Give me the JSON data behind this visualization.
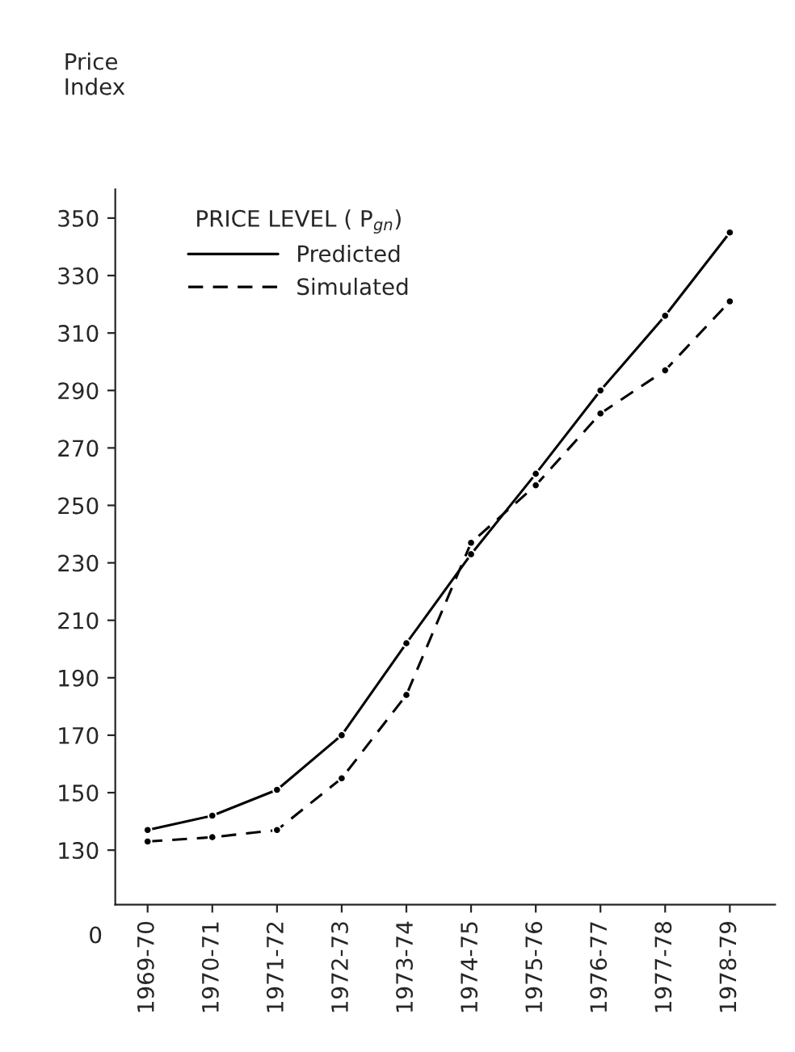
{
  "chart_data": {
    "type": "line",
    "ylabel": "Price\nIndex",
    "legend_title": "PRICE LEVEL ( P$_{gn}$)",
    "legend": "top left",
    "marker": "circle",
    "grid": false,
    "categories": [
      "1969-70",
      "1970-71",
      "1971-72",
      "1972-73",
      "1973-74",
      "1974-75",
      "1975-76",
      "1976-77",
      "1977-78",
      "1978-79"
    ],
    "ylim": [
      111,
      360
    ],
    "annotations": [
      "0"
    ],
    "yticks": [
      130,
      150,
      170,
      190,
      210,
      230,
      250,
      270,
      290,
      310,
      330,
      350
    ],
    "series": [
      {
        "name": "Predicted",
        "color": "#000000",
        "line_style": "solid",
        "values": [
          137,
          142,
          151,
          170,
          202,
          233,
          261,
          290,
          316,
          345
        ]
      },
      {
        "name": "Simulated",
        "color": "#000000",
        "line_style": "dashed",
        "values": [
          133,
          134.5,
          137,
          155,
          184,
          237,
          257,
          282,
          297,
          321
        ]
      }
    ]
  }
}
